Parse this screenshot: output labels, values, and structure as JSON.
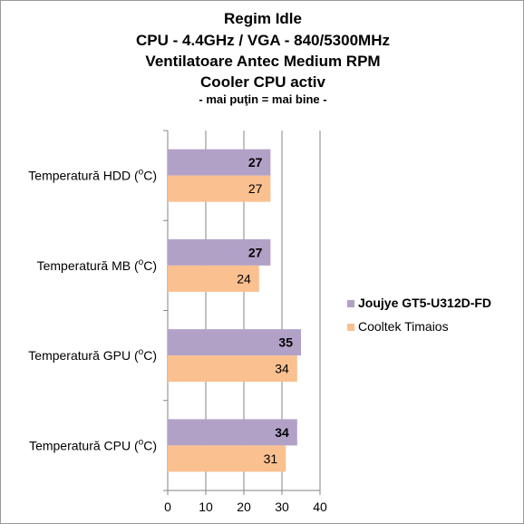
{
  "chart_data": {
    "type": "bar",
    "orientation": "horizontal",
    "title_lines": [
      "Regim Idle",
      "CPU - 4.4GHz / VGA - 840/5300MHz",
      "Ventilatoare Antec Medium RPM",
      "Cooler CPU activ",
      "- mai puţin = mai bine -"
    ],
    "categories": [
      "Temperatură  HDD (",
      "Temperatură  MB (",
      "Temperatură  GPU (",
      "Temperatură  CPU ("
    ],
    "unit_superscript": "o",
    "unit_suffix": "C)",
    "series": [
      {
        "name": "Joujye GT5-U312D-FD",
        "color": "#b2a1c7",
        "bold": true,
        "values": [
          27,
          27,
          35,
          34
        ]
      },
      {
        "name": "Cooltek Timaios",
        "color": "#fac090",
        "bold": false,
        "values": [
          27,
          24,
          34,
          31
        ]
      }
    ],
    "xlim": [
      0,
      40
    ],
    "xticks": [
      0,
      10,
      20,
      30,
      40
    ],
    "grid": true,
    "legend_position": "right"
  }
}
